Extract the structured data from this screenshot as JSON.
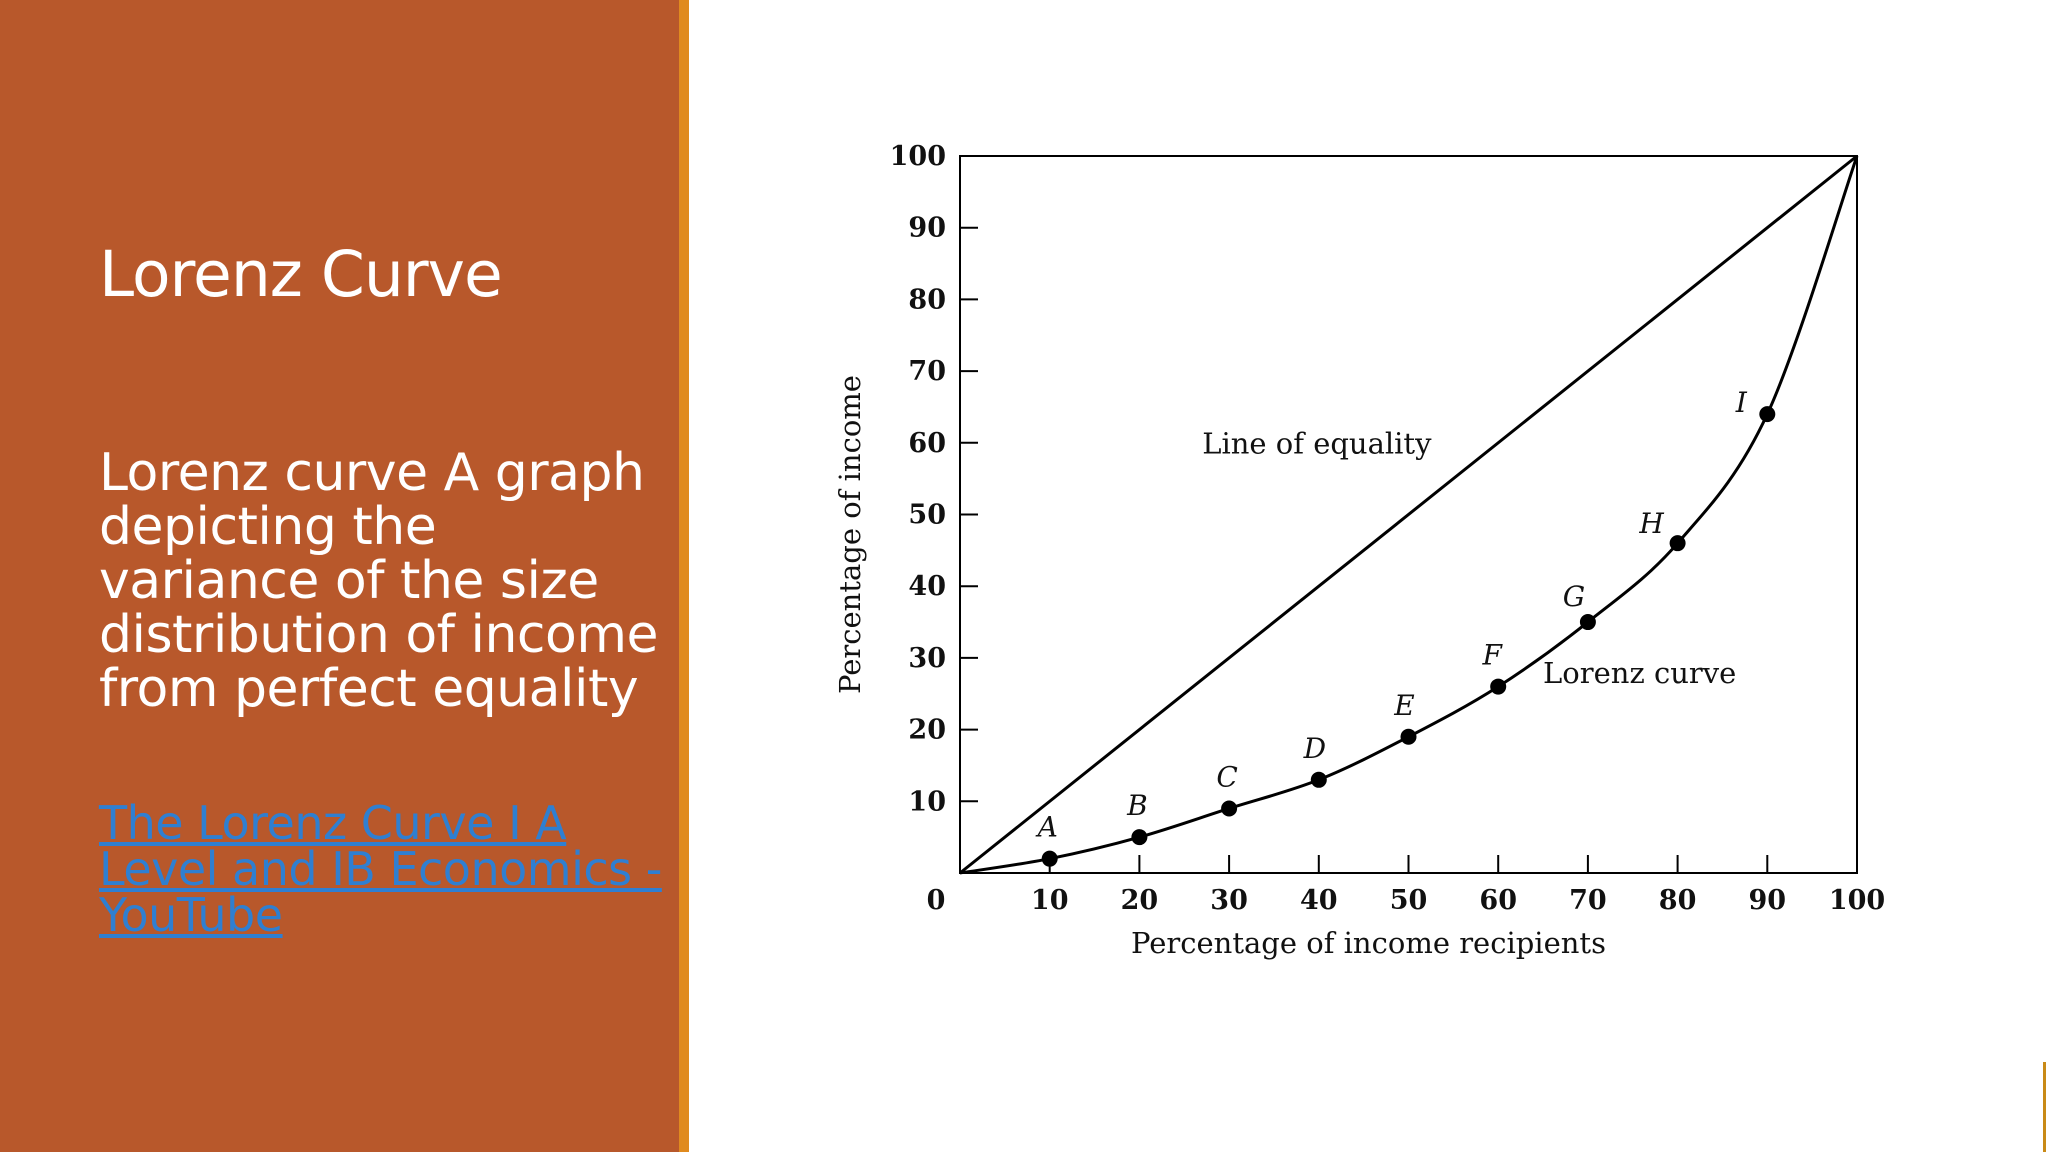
{
  "slide": {
    "title": "Lorenz Curve",
    "body": "Lorenz curve A graph depicting the variance of the size distribution of income from perfect equality",
    "link_text": "The Lorenz Curve I A Level and IB Economics - YouTube"
  },
  "colors": {
    "panel": "#b8582b",
    "accent": "#e08a1e",
    "link": "#2f7fd1"
  },
  "chart_data": {
    "type": "line",
    "xlabel": "Percentage of income recipients",
    "ylabel": "Percentage of income",
    "xlim": [
      0,
      100
    ],
    "ylim": [
      0,
      100
    ],
    "x_ticks": [
      0,
      10,
      20,
      30,
      40,
      50,
      60,
      70,
      80,
      90,
      100
    ],
    "y_ticks": [
      10,
      20,
      30,
      40,
      50,
      60,
      70,
      80,
      90,
      100
    ],
    "series": [
      {
        "name": "Line of equality",
        "points": [
          [
            0,
            0
          ],
          [
            100,
            100
          ]
        ]
      },
      {
        "name": "Lorenz curve",
        "points": [
          [
            0,
            0
          ],
          [
            10,
            2
          ],
          [
            20,
            5
          ],
          [
            30,
            9
          ],
          [
            40,
            13
          ],
          [
            50,
            19
          ],
          [
            60,
            26
          ],
          [
            70,
            35
          ],
          [
            80,
            46
          ],
          [
            90,
            64
          ],
          [
            100,
            100
          ]
        ],
        "labeled_points": [
          {
            "label": "A",
            "x": 10,
            "y": 2
          },
          {
            "label": "B",
            "x": 20,
            "y": 5
          },
          {
            "label": "C",
            "x": 30,
            "y": 9
          },
          {
            "label": "D",
            "x": 40,
            "y": 13
          },
          {
            "label": "E",
            "x": 50,
            "y": 19
          },
          {
            "label": "F",
            "x": 60,
            "y": 26
          },
          {
            "label": "G",
            "x": 70,
            "y": 35
          },
          {
            "label": "H",
            "x": 80,
            "y": 46
          },
          {
            "label": "I",
            "x": 90,
            "y": 64
          }
        ]
      }
    ],
    "annotations": [
      "Line of equality",
      "Lorenz curve"
    ],
    "grid": false
  }
}
